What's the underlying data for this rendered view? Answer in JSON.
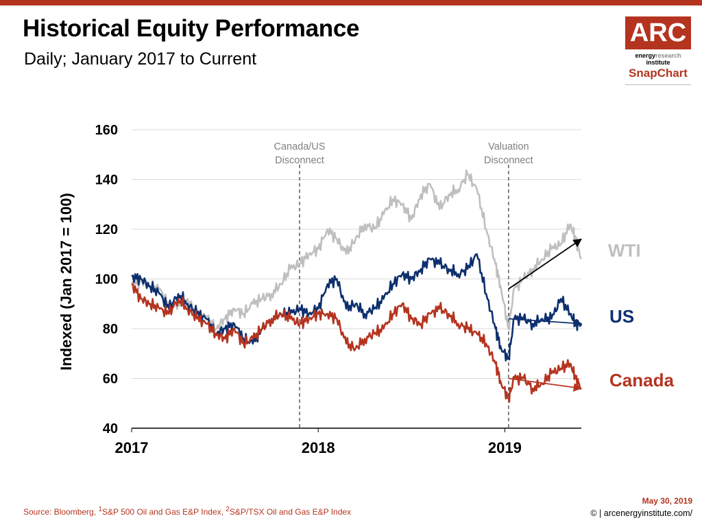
{
  "header": {
    "title": "Historical Equity Performance",
    "subtitle": "Daily; January 2017 to Current"
  },
  "logo": {
    "mark": "ARC",
    "line1_bold": "energy",
    "line1_light": "research",
    "line2": "institute",
    "product": "SnapChart"
  },
  "footer": {
    "source_prefix": "Source: Bloomberg, ",
    "source_sup1": "1",
    "source_mid": "S&P 500 Oil and Gas E&P Index, ",
    "source_sup2": "2",
    "source_end": "S&P/TSX Oil and Gas E&P Index",
    "date": "May 30, 2019",
    "copyright": "© | arcenergyinstitute.com/"
  },
  "colors": {
    "brand": "#b5341f",
    "wti": "#bfbfbf",
    "us": "#0d2f6e",
    "canada": "#b5341f",
    "arrow": "#000000"
  },
  "chart_data": {
    "type": "line",
    "title": "",
    "ylabel": "Indexed (Jan 2017 = 100)",
    "xlabel": "",
    "ylim": [
      40,
      160
    ],
    "xlim": [
      2017.0,
      2019.41
    ],
    "yticks": [
      40,
      60,
      80,
      100,
      120,
      140,
      160
    ],
    "xticks": [
      {
        "value": 2017,
        "label": "2017"
      },
      {
        "value": 2018,
        "label": "2018"
      },
      {
        "value": 2019,
        "label": "2019"
      }
    ],
    "grid": "horizontal",
    "legend": "inline-right",
    "annotations": [
      {
        "x": 2017.9,
        "lines": [
          "Canada/US",
          "Disconnect"
        ]
      },
      {
        "x": 2019.02,
        "lines": [
          "Valuation",
          "Disconnect"
        ]
      }
    ],
    "series": [
      {
        "name": "WTI",
        "color_key": "wti",
        "x": [
          2017.0,
          2017.05,
          2017.1,
          2017.15,
          2017.2,
          2017.25,
          2017.3,
          2017.35,
          2017.4,
          2017.45,
          2017.5,
          2017.55,
          2017.6,
          2017.65,
          2017.7,
          2017.75,
          2017.8,
          2017.85,
          2017.9,
          2017.95,
          2018.0,
          2018.05,
          2018.1,
          2018.15,
          2018.2,
          2018.25,
          2018.3,
          2018.35,
          2018.4,
          2018.45,
          2018.5,
          2018.55,
          2018.6,
          2018.65,
          2018.7,
          2018.75,
          2018.8,
          2018.85,
          2018.9,
          2018.95,
          2018.98,
          2019.02,
          2019.05,
          2019.1,
          2019.15,
          2019.2,
          2019.25,
          2019.3,
          2019.35,
          2019.38,
          2019.41
        ],
        "values": [
          98,
          99,
          97,
          96,
          89,
          90,
          92,
          86,
          85,
          80,
          84,
          88,
          86,
          90,
          92,
          94,
          98,
          104,
          106,
          110,
          112,
          120,
          116,
          110,
          116,
          122,
          120,
          126,
          132,
          130,
          124,
          134,
          138,
          128,
          134,
          136,
          142,
          136,
          120,
          106,
          96,
          80,
          96,
          100,
          104,
          108,
          112,
          114,
          122,
          116,
          108
        ]
      },
      {
        "name": "US",
        "color_key": "us",
        "x": [
          2017.0,
          2017.05,
          2017.1,
          2017.15,
          2017.2,
          2017.25,
          2017.3,
          2017.35,
          2017.4,
          2017.45,
          2017.5,
          2017.55,
          2017.6,
          2017.65,
          2017.7,
          2017.75,
          2017.8,
          2017.85,
          2017.9,
          2017.95,
          2018.0,
          2018.05,
          2018.1,
          2018.15,
          2018.2,
          2018.25,
          2018.3,
          2018.35,
          2018.4,
          2018.45,
          2018.5,
          2018.55,
          2018.6,
          2018.65,
          2018.7,
          2018.75,
          2018.8,
          2018.85,
          2018.9,
          2018.95,
          2018.98,
          2019.02,
          2019.05,
          2019.1,
          2019.15,
          2019.2,
          2019.25,
          2019.3,
          2019.35,
          2019.38,
          2019.41
        ],
        "values": [
          101,
          100,
          97,
          94,
          88,
          94,
          90,
          86,
          84,
          78,
          80,
          82,
          76,
          74,
          80,
          84,
          86,
          86,
          88,
          86,
          88,
          98,
          100,
          88,
          90,
          86,
          88,
          92,
          98,
          102,
          100,
          104,
          108,
          106,
          104,
          102,
          104,
          110,
          94,
          80,
          72,
          68,
          84,
          84,
          82,
          84,
          84,
          92,
          86,
          82,
          82
        ]
      },
      {
        "name": "Canada",
        "color_key": "canada",
        "x": [
          2017.0,
          2017.05,
          2017.1,
          2017.15,
          2017.2,
          2017.25,
          2017.3,
          2017.35,
          2017.4,
          2017.45,
          2017.5,
          2017.55,
          2017.6,
          2017.65,
          2017.7,
          2017.75,
          2017.8,
          2017.85,
          2017.9,
          2017.95,
          2018.0,
          2018.05,
          2018.1,
          2018.15,
          2018.2,
          2018.25,
          2018.3,
          2018.35,
          2018.4,
          2018.45,
          2018.5,
          2018.55,
          2018.6,
          2018.65,
          2018.7,
          2018.75,
          2018.8,
          2018.85,
          2018.9,
          2018.95,
          2018.98,
          2019.02,
          2019.05,
          2019.1,
          2019.15,
          2019.2,
          2019.25,
          2019.3,
          2019.35,
          2019.38,
          2019.41
        ],
        "values": [
          98,
          92,
          90,
          88,
          86,
          92,
          88,
          84,
          82,
          78,
          76,
          80,
          74,
          76,
          80,
          84,
          86,
          84,
          82,
          84,
          86,
          86,
          84,
          74,
          72,
          76,
          78,
          80,
          86,
          90,
          84,
          82,
          86,
          88,
          86,
          82,
          80,
          78,
          74,
          66,
          58,
          52,
          60,
          60,
          56,
          58,
          62,
          64,
          66,
          60,
          56
        ]
      }
    ],
    "trend_arrows": [
      {
        "series": "WTI",
        "x": [
          2019.02,
          2019.41
        ],
        "y": [
          96,
          116
        ]
      },
      {
        "series": "US",
        "x": [
          2019.02,
          2019.41
        ],
        "y": [
          84,
          82
        ]
      },
      {
        "series": "Canada",
        "x": [
          2019.02,
          2019.41
        ],
        "y": [
          60,
          56
        ]
      }
    ]
  }
}
